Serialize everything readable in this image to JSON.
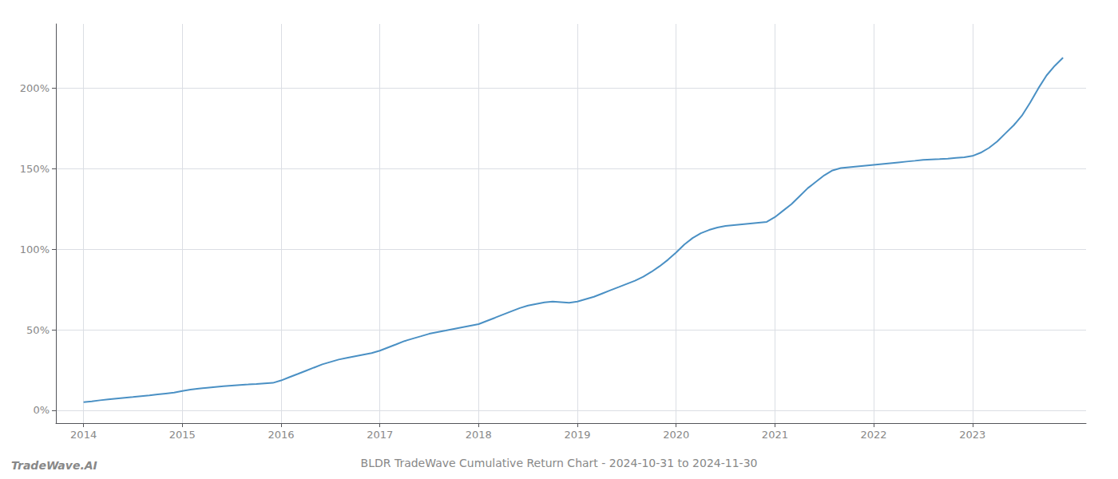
{
  "chart_data": {
    "type": "line",
    "title": "BLDR TradeWave Cumulative Return Chart - 2024-10-31 to 2024-11-30",
    "annotations": [
      "TradeWave.AI"
    ],
    "color": "#4a90c4",
    "x": [
      2014.0,
      2014.083,
      2014.167,
      2014.25,
      2014.333,
      2014.417,
      2014.5,
      2014.583,
      2014.667,
      2014.75,
      2014.833,
      2014.917,
      2015.0,
      2015.083,
      2015.167,
      2015.25,
      2015.333,
      2015.417,
      2015.5,
      2015.583,
      2015.667,
      2015.75,
      2015.833,
      2015.917,
      2016.0,
      2016.083,
      2016.167,
      2016.25,
      2016.333,
      2016.417,
      2016.5,
      2016.583,
      2016.667,
      2016.75,
      2016.833,
      2016.917,
      2017.0,
      2017.083,
      2017.167,
      2017.25,
      2017.333,
      2017.417,
      2017.5,
      2017.583,
      2017.667,
      2017.75,
      2017.833,
      2017.917,
      2018.0,
      2018.083,
      2018.167,
      2018.25,
      2018.333,
      2018.417,
      2018.5,
      2018.583,
      2018.667,
      2018.75,
      2018.833,
      2018.917,
      2019.0,
      2019.083,
      2019.167,
      2019.25,
      2019.333,
      2019.417,
      2019.5,
      2019.583,
      2019.667,
      2019.75,
      2019.833,
      2019.917,
      2020.0,
      2020.083,
      2020.167,
      2020.25,
      2020.333,
      2020.417,
      2020.5,
      2020.583,
      2020.667,
      2020.75,
      2020.833,
      2020.917,
      2021.0,
      2021.083,
      2021.167,
      2021.25,
      2021.333,
      2021.417,
      2021.5,
      2021.583,
      2021.667,
      2021.75,
      2021.833,
      2021.917,
      2022.0,
      2022.083,
      2022.167,
      2022.25,
      2022.333,
      2022.417,
      2022.5,
      2022.583,
      2022.667,
      2022.75,
      2022.833,
      2022.917,
      2023.0,
      2023.083,
      2023.167,
      2023.25,
      2023.333,
      2023.417,
      2023.5,
      2023.583,
      2023.667,
      2023.75,
      2023.833,
      2023.917
    ],
    "values": [
      5.0,
      5.5,
      6.2,
      6.8,
      7.3,
      7.8,
      8.2,
      8.7,
      9.2,
      9.8,
      10.4,
      11.0,
      12.0,
      12.8,
      13.5,
      14.0,
      14.5,
      14.9,
      15.3,
      15.7,
      16.0,
      16.3,
      16.7,
      17.0,
      18.5,
      20.5,
      22.5,
      24.5,
      26.5,
      28.5,
      30.0,
      31.5,
      32.5,
      33.5,
      34.5,
      35.5,
      37.0,
      39.0,
      41.0,
      43.0,
      44.5,
      46.0,
      47.5,
      48.5,
      49.5,
      50.5,
      51.5,
      52.5,
      53.5,
      55.5,
      57.5,
      59.5,
      61.5,
      63.5,
      65.0,
      66.0,
      67.0,
      67.5,
      67.2,
      66.8,
      67.5,
      69.0,
      70.5,
      72.5,
      74.5,
      76.5,
      78.5,
      80.5,
      83.0,
      86.0,
      89.5,
      93.5,
      98.0,
      103.0,
      107.0,
      110.0,
      112.0,
      113.5,
      114.5,
      115.0,
      115.5,
      116.0,
      116.5,
      117.0,
      120.0,
      124.0,
      128.0,
      133.0,
      138.0,
      142.0,
      146.0,
      149.0,
      150.5,
      151.0,
      151.5,
      152.0,
      152.5,
      153.0,
      153.5,
      154.0,
      154.5,
      155.0,
      155.5,
      155.8,
      156.0,
      156.3,
      156.8,
      157.2,
      158.0,
      160.0,
      163.0,
      167.0,
      172.0,
      177.0,
      183.0,
      191.0,
      200.0,
      208.0,
      214.0,
      219.0
    ],
    "xlim": [
      2013.72,
      2024.15
    ],
    "xticks": [
      2014,
      2015,
      2016,
      2017,
      2018,
      2019,
      2020,
      2021,
      2022,
      2023
    ],
    "ylim": [
      -8,
      240
    ],
    "yticks": [
      {
        "value": 0,
        "label": "0%"
      },
      {
        "value": 50,
        "label": "50%"
      },
      {
        "value": 100,
        "label": "100%"
      },
      {
        "value": 150,
        "label": "150%"
      },
      {
        "value": 200,
        "label": "200%"
      }
    ],
    "grid": true
  }
}
